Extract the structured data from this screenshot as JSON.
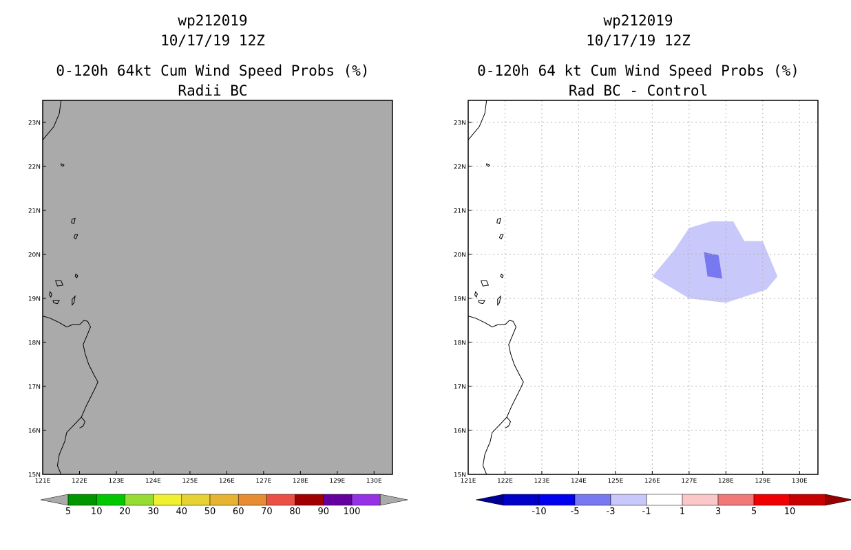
{
  "chart_data": [
    {
      "type": "heatmap",
      "title_lines": [
        "wp212019",
        "10/17/19 12Z",
        "0-120h 64kt Cum Wind Speed Probs (%)",
        "Radii BC"
      ],
      "x_ticks": [
        "121E",
        "122E",
        "123E",
        "124E",
        "125E",
        "126E",
        "127E",
        "128E",
        "129E",
        "130E"
      ],
      "y_ticks": [
        "15N",
        "16N",
        "17N",
        "18N",
        "19N",
        "20N",
        "21N",
        "22N",
        "23N"
      ],
      "xlim": [
        121,
        130.5
      ],
      "ylim": [
        15,
        23.5
      ],
      "grid": false,
      "background_color": "#aaaaaa",
      "colorbar": {
        "labels": [
          "5",
          "10",
          "20",
          "30",
          "40",
          "50",
          "60",
          "70",
          "80",
          "90",
          "100"
        ],
        "colors": [
          "#009600",
          "#00c800",
          "#96dc32",
          "#f0f032",
          "#e6d232",
          "#e6b432",
          "#e68c32",
          "#eb5046",
          "#a00000",
          "#6400a0",
          "#9632e6"
        ],
        "under_color": "#aaaaaa",
        "over_color": "#aaaaaa"
      }
    },
    {
      "type": "heatmap",
      "title_lines": [
        "wp212019",
        "10/17/19 12Z",
        "0-120h 64 kt Cum Wind Speed Probs (%)",
        "Rad BC - Control"
      ],
      "x_ticks": [
        "121E",
        "122E",
        "123E",
        "124E",
        "125E",
        "126E",
        "127E",
        "128E",
        "129E",
        "130E"
      ],
      "y_ticks": [
        "15N",
        "16N",
        "17N",
        "18N",
        "19N",
        "20N",
        "21N",
        "22N",
        "23N"
      ],
      "xlim": [
        121,
        130.5
      ],
      "ylim": [
        15,
        23.5
      ],
      "grid": true,
      "background_color": "#ffffff",
      "regions": [
        {
          "name": "-3 to -1 difference",
          "color": "#c8c8fa",
          "lon": [
            126.0,
            126.6,
            127.0,
            127.6,
            128.2,
            128.5,
            129.0,
            129.4,
            129.1,
            128.0,
            127.0,
            126.0
          ],
          "lat": [
            19.5,
            20.1,
            20.6,
            20.75,
            20.75,
            20.3,
            20.3,
            19.5,
            19.2,
            18.9,
            19.0,
            19.5
          ]
        },
        {
          "name": "-5 to -3 difference",
          "color": "#7878f0",
          "lon": [
            127.4,
            127.8,
            127.9,
            127.5
          ],
          "lat": [
            20.05,
            19.98,
            19.45,
            19.5
          ]
        }
      ],
      "colorbar": {
        "labels": [
          "-10",
          "-5",
          "-3",
          "-1",
          "1",
          "3",
          "5",
          "10"
        ],
        "colors": [
          "#0000c8",
          "#0000f0",
          "#7878f0",
          "#c8c8fa",
          "#ffffff",
          "#fac8c8",
          "#f07878",
          "#f00000",
          "#c80000"
        ],
        "under_color": "#000096",
        "over_color": "#960000"
      }
    }
  ]
}
